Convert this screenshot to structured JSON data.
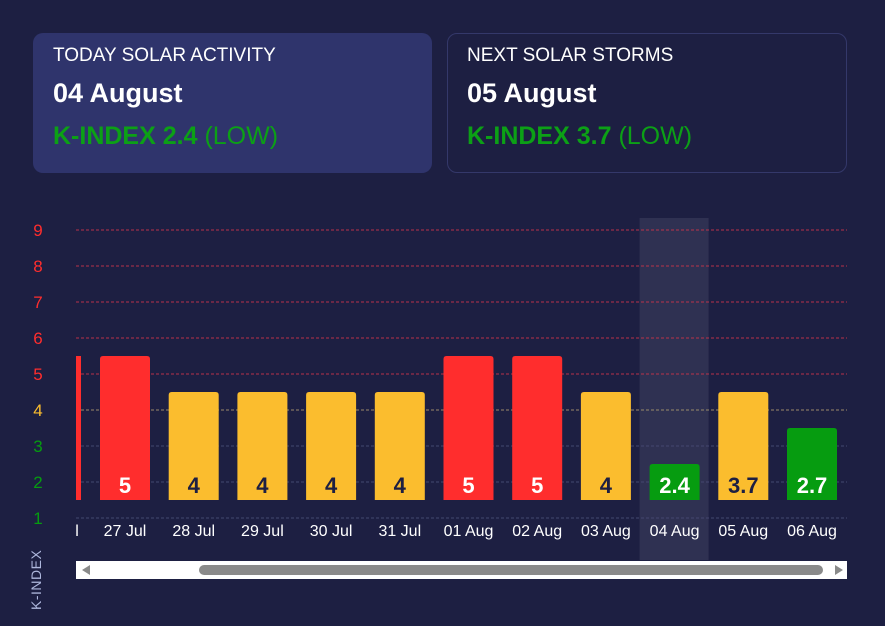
{
  "today": {
    "title": "TODAY SOLAR ACTIVITY",
    "date": "04 August",
    "kindex": "K-INDEX 2.4",
    "level": "(LOW)"
  },
  "next": {
    "title": "NEXT SOLAR STORMS",
    "date": "05 August",
    "kindex": "K-INDEX 3.7",
    "level": "(LOW)"
  },
  "colors": {
    "red": "#ff2d2d",
    "yellow": "#fbbd2e",
    "green": "#069c10",
    "bg": "#1d1f42",
    "highlight": "#2f3152"
  },
  "chart_data": {
    "type": "bar",
    "ylabel": "K-INDEX",
    "ylim": [
      1,
      9
    ],
    "yticks": [
      "1",
      "2",
      "3",
      "4",
      "5",
      "6",
      "7",
      "8",
      "9"
    ],
    "partial_left": {
      "label": "l",
      "value": 5
    },
    "categories": [
      "27 Jul",
      "28 Jul",
      "29 Jul",
      "30 Jul",
      "31 Jul",
      "01 Aug",
      "02 Aug",
      "03 Aug",
      "04 Aug",
      "05 Aug",
      "06 Aug"
    ],
    "values": [
      5,
      4,
      4,
      4,
      4,
      5,
      5,
      4,
      2.4,
      3.7,
      2.7
    ],
    "labels": [
      "5",
      "4",
      "4",
      "4",
      "4",
      "5",
      "5",
      "4",
      "2.4",
      "3.7",
      "2.7"
    ],
    "highlighted": "04 Aug",
    "grid": true
  }
}
